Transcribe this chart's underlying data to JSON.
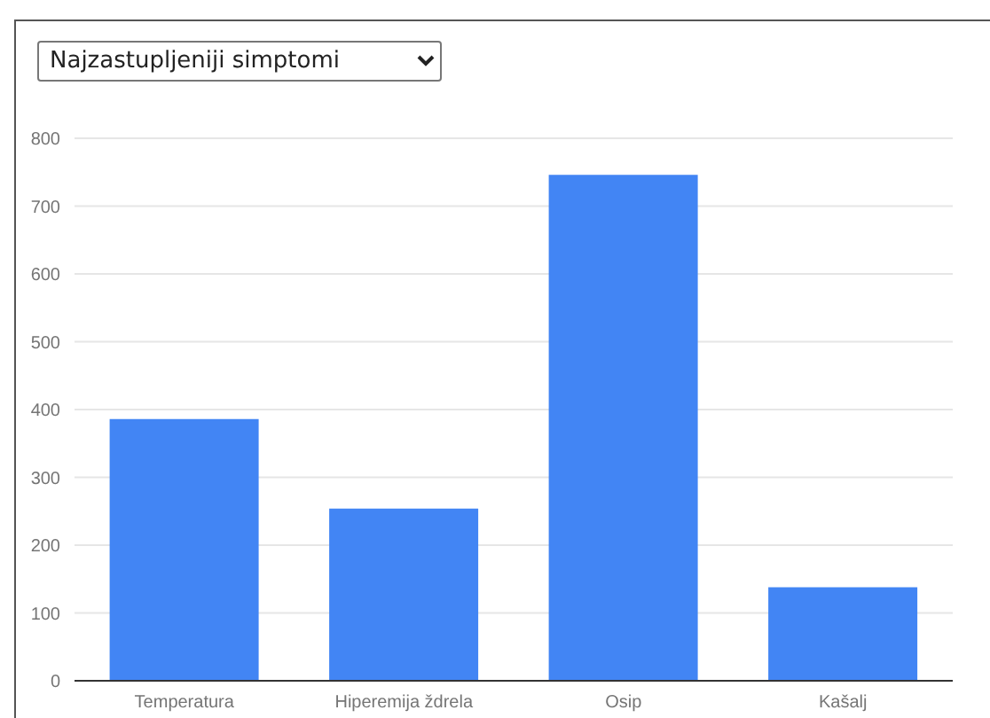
{
  "chart_data": {
    "type": "bar",
    "title": "Najzastupljeniji simptomi",
    "categories": [
      "Temperatura",
      "Hiperemija ždrela",
      "Osip",
      "Kašalj"
    ],
    "values": [
      386,
      254,
      746,
      138
    ],
    "color": "#4285f4",
    "ylim": [
      0,
      800
    ],
    "yticks": [
      0,
      100,
      200,
      300,
      400,
      500,
      600,
      700,
      800
    ],
    "grid": "y",
    "legend": false
  }
}
